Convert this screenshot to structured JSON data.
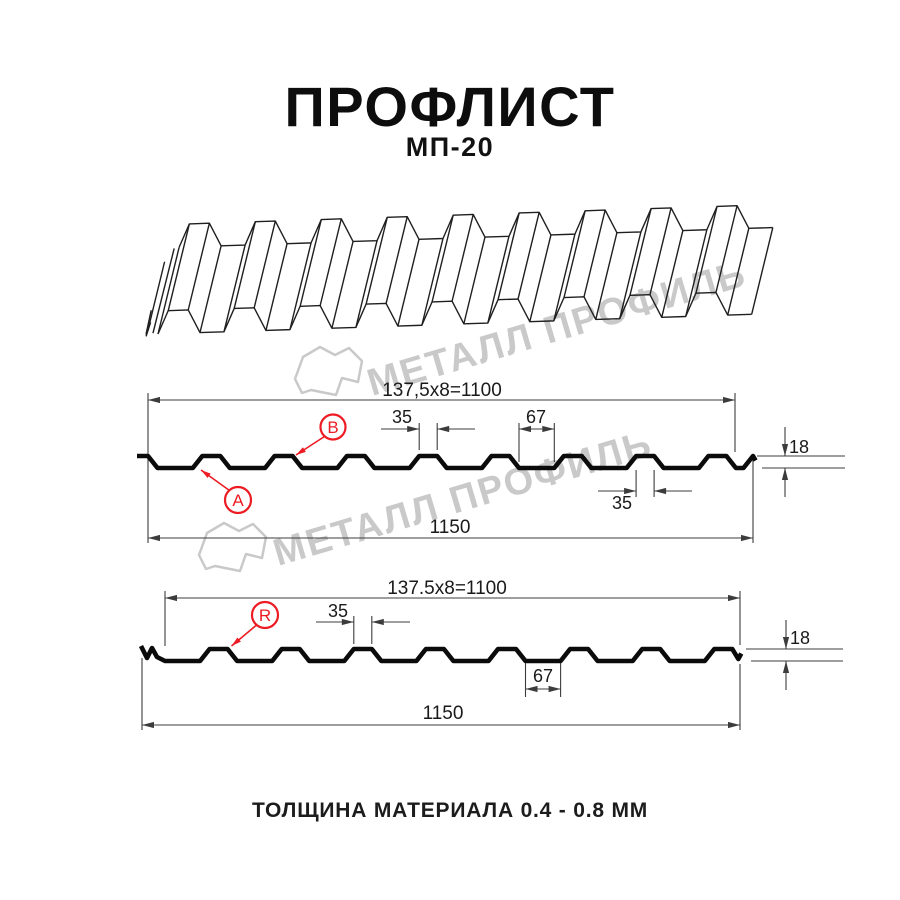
{
  "header": {
    "title": "ПРОФЛИСТ",
    "subtitle": "МП-20"
  },
  "watermark": {
    "brand": "МЕТАЛЛ ПРОФИЛЬ"
  },
  "section_top": {
    "width_formula": "137,5x8=1100",
    "overall_width": "1150",
    "rib_top_width": "35",
    "valley_width": "67",
    "rib_bottom_width": "35",
    "profile_height": "18",
    "label_b": "B",
    "label_a": "A"
  },
  "section_bottom": {
    "width_formula": "137.5x8=1100",
    "overall_width": "1150",
    "rib_top_width": "35",
    "valley_width": "67",
    "profile_height": "18",
    "label_r": "R"
  },
  "footer": {
    "thickness_note": "ТОЛЩИНА МАТЕРИАЛА 0.4 - 0.8 ММ"
  },
  "colors": {
    "accent_red": "#ed1c24",
    "drawing_line": "#3c3c3c",
    "profile_line": "#0b0b0b",
    "watermark_gray": "#c9c9c9"
  }
}
